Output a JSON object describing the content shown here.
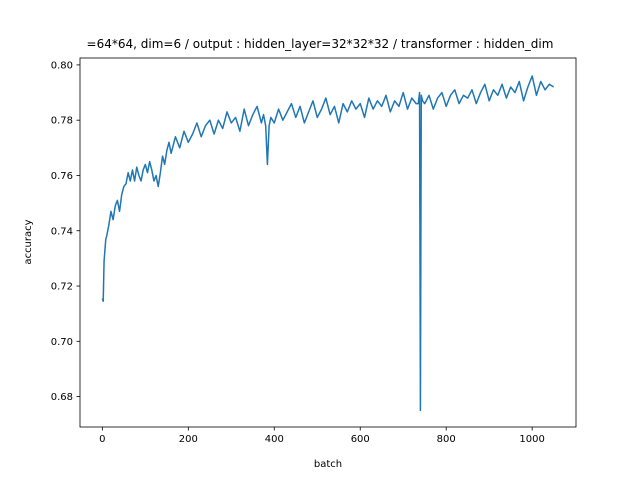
{
  "chart_data": {
    "type": "line",
    "title": "=64*64, dim=6 / output : hidden_layer=32*32*32 / transformer : hidden_dim",
    "xlabel": "batch",
    "ylabel": "accuracy",
    "xlim": [
      -52,
      1102
    ],
    "ylim": [
      0.669,
      0.8025
    ],
    "xticks": [
      0,
      200,
      400,
      600,
      800,
      1000
    ],
    "xtick_labels": [
      "0",
      "200",
      "400",
      "600",
      "800",
      "1000"
    ],
    "yticks": [
      0.68,
      0.7,
      0.72,
      0.74,
      0.76,
      0.78,
      0.8
    ],
    "ytick_labels": [
      "0.68",
      "0.70",
      "0.72",
      "0.74",
      "0.76",
      "0.78",
      "0.80"
    ],
    "grid": false,
    "legend": "none",
    "series": [
      {
        "color": "#1f77b4",
        "x": [
          0,
          2,
          4,
          6,
          8,
          10,
          15,
          20,
          25,
          30,
          35,
          40,
          45,
          50,
          55,
          60,
          65,
          70,
          75,
          80,
          85,
          90,
          95,
          100,
          105,
          110,
          115,
          120,
          125,
          130,
          135,
          140,
          145,
          150,
          155,
          160,
          170,
          180,
          190,
          200,
          210,
          220,
          230,
          240,
          250,
          260,
          270,
          280,
          290,
          300,
          310,
          320,
          330,
          340,
          350,
          360,
          370,
          375,
          380,
          384,
          388,
          392,
          400,
          410,
          420,
          430,
          440,
          450,
          460,
          470,
          480,
          490,
          500,
          510,
          520,
          530,
          540,
          550,
          560,
          570,
          580,
          590,
          600,
          610,
          620,
          630,
          640,
          650,
          660,
          670,
          680,
          690,
          700,
          710,
          720,
          730,
          735,
          738,
          740,
          742,
          745,
          750,
          760,
          770,
          780,
          790,
          800,
          810,
          820,
          830,
          840,
          850,
          860,
          870,
          880,
          890,
          900,
          910,
          920,
          930,
          940,
          950,
          960,
          970,
          980,
          990,
          1000,
          1010,
          1020,
          1030,
          1040,
          1050
        ],
        "y": [
          0.7155,
          0.7145,
          0.729,
          0.733,
          0.737,
          0.738,
          0.742,
          0.747,
          0.744,
          0.749,
          0.751,
          0.747,
          0.753,
          0.756,
          0.757,
          0.761,
          0.758,
          0.762,
          0.758,
          0.763,
          0.76,
          0.758,
          0.762,
          0.764,
          0.761,
          0.765,
          0.762,
          0.758,
          0.76,
          0.756,
          0.761,
          0.767,
          0.764,
          0.769,
          0.772,
          0.768,
          0.774,
          0.77,
          0.776,
          0.772,
          0.775,
          0.779,
          0.774,
          0.778,
          0.78,
          0.775,
          0.78,
          0.777,
          0.783,
          0.779,
          0.781,
          0.776,
          0.784,
          0.778,
          0.782,
          0.785,
          0.779,
          0.782,
          0.778,
          0.764,
          0.778,
          0.781,
          0.779,
          0.784,
          0.78,
          0.783,
          0.786,
          0.781,
          0.785,
          0.779,
          0.783,
          0.787,
          0.781,
          0.784,
          0.788,
          0.782,
          0.785,
          0.779,
          0.786,
          0.783,
          0.787,
          0.784,
          0.786,
          0.781,
          0.788,
          0.784,
          0.787,
          0.785,
          0.789,
          0.783,
          0.787,
          0.785,
          0.79,
          0.784,
          0.788,
          0.786,
          0.786,
          0.79,
          0.675,
          0.789,
          0.787,
          0.786,
          0.789,
          0.784,
          0.788,
          0.79,
          0.785,
          0.789,
          0.791,
          0.786,
          0.789,
          0.788,
          0.791,
          0.786,
          0.79,
          0.793,
          0.787,
          0.791,
          0.789,
          0.793,
          0.788,
          0.792,
          0.79,
          0.794,
          0.787,
          0.792,
          0.796,
          0.789,
          0.794,
          0.791,
          0.793,
          0.792
        ]
      }
    ]
  }
}
